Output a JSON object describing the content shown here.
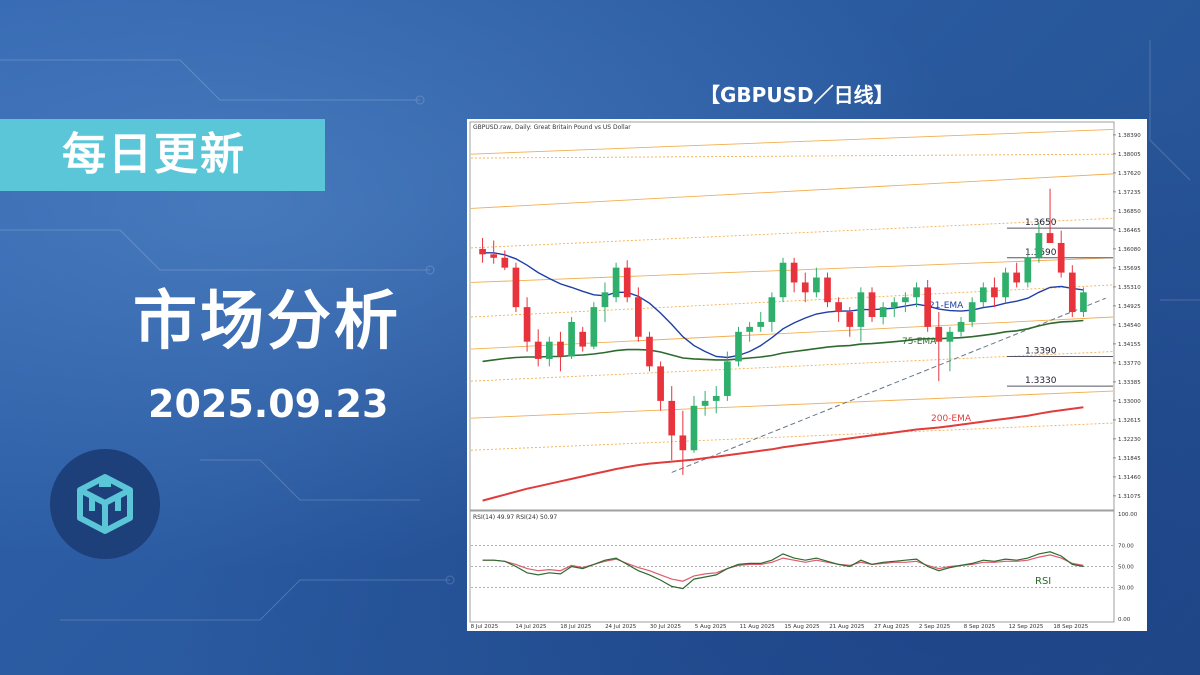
{
  "banner": {
    "label": "每日更新"
  },
  "headline": {
    "title": "市场分析",
    "date": "2025.09.23"
  },
  "chart_title": "【GBPUSD／日线】",
  "colors": {
    "banner": "#5bc6d8",
    "bg": "#2a5aa0",
    "bull": "#2eaf6b",
    "bear": "#e8323c",
    "ema21": "#1f3fa8",
    "ema75": "#2e6a2e",
    "ema200": "#e03c3c",
    "resistance": "#f0a030",
    "rsi14": "#2e6a2e",
    "rsi24": "#e05a70"
  },
  "chart_data": [
    {
      "type": "candlestick",
      "header": "GBPUSD.raw, Daily:  Great Britain Pound vs US Dollar",
      "x_labels": [
        "8 Jul 2025",
        "14 Jul 2025",
        "18 Jul 2025",
        "24 Jul 2025",
        "30 Jul 2025",
        "5 Aug 2025",
        "11 Aug 2025",
        "15 Aug 2025",
        "21 Aug 2025",
        "27 Aug 2025",
        "2 Sep 2025",
        "8 Sep 2025",
        "12 Sep 2025",
        "18 Sep 2025"
      ],
      "y_ticks": [
        "1.38390",
        "1.38005",
        "1.37620",
        "1.37235",
        "1.36850",
        "1.36465",
        "1.36080",
        "1.35695",
        "1.35310",
        "1.34925",
        "1.34540",
        "1.34155",
        "1.33770",
        "1.33385",
        "1.33000",
        "1.32615",
        "1.32230",
        "1.31845",
        "1.31460",
        "1.31075"
      ],
      "ylim": [
        1.3085,
        1.3855
      ],
      "candles": [
        {
          "o": 1.3608,
          "h": 1.363,
          "l": 1.358,
          "c": 1.3597
        },
        {
          "o": 1.3597,
          "h": 1.3625,
          "l": 1.3578,
          "c": 1.359
        },
        {
          "o": 1.359,
          "h": 1.3605,
          "l": 1.3565,
          "c": 1.357
        },
        {
          "o": 1.357,
          "h": 1.358,
          "l": 1.348,
          "c": 1.349
        },
        {
          "o": 1.349,
          "h": 1.351,
          "l": 1.34,
          "c": 1.342
        },
        {
          "o": 1.342,
          "h": 1.3445,
          "l": 1.337,
          "c": 1.3385
        },
        {
          "o": 1.3385,
          "h": 1.343,
          "l": 1.337,
          "c": 1.342
        },
        {
          "o": 1.342,
          "h": 1.344,
          "l": 1.336,
          "c": 1.339
        },
        {
          "o": 1.339,
          "h": 1.347,
          "l": 1.3385,
          "c": 1.346
        },
        {
          "o": 1.344,
          "h": 1.345,
          "l": 1.34,
          "c": 1.341
        },
        {
          "o": 1.341,
          "h": 1.35,
          "l": 1.3405,
          "c": 1.349
        },
        {
          "o": 1.349,
          "h": 1.354,
          "l": 1.346,
          "c": 1.352
        },
        {
          "o": 1.351,
          "h": 1.358,
          "l": 1.35,
          "c": 1.357
        },
        {
          "o": 1.357,
          "h": 1.3585,
          "l": 1.35,
          "c": 1.351
        },
        {
          "o": 1.351,
          "h": 1.353,
          "l": 1.342,
          "c": 1.343
        },
        {
          "o": 1.343,
          "h": 1.344,
          "l": 1.336,
          "c": 1.337
        },
        {
          "o": 1.337,
          "h": 1.338,
          "l": 1.328,
          "c": 1.33
        },
        {
          "o": 1.33,
          "h": 1.333,
          "l": 1.318,
          "c": 1.323
        },
        {
          "o": 1.323,
          "h": 1.328,
          "l": 1.315,
          "c": 1.32
        },
        {
          "o": 1.32,
          "h": 1.331,
          "l": 1.3195,
          "c": 1.329
        },
        {
          "o": 1.329,
          "h": 1.332,
          "l": 1.327,
          "c": 1.33
        },
        {
          "o": 1.33,
          "h": 1.333,
          "l": 1.3275,
          "c": 1.331
        },
        {
          "o": 1.331,
          "h": 1.34,
          "l": 1.33,
          "c": 1.338
        },
        {
          "o": 1.338,
          "h": 1.345,
          "l": 1.337,
          "c": 1.344
        },
        {
          "o": 1.344,
          "h": 1.346,
          "l": 1.342,
          "c": 1.345
        },
        {
          "o": 1.345,
          "h": 1.348,
          "l": 1.344,
          "c": 1.346
        },
        {
          "o": 1.346,
          "h": 1.352,
          "l": 1.344,
          "c": 1.351
        },
        {
          "o": 1.351,
          "h": 1.359,
          "l": 1.35,
          "c": 1.358
        },
        {
          "o": 1.358,
          "h": 1.359,
          "l": 1.352,
          "c": 1.354
        },
        {
          "o": 1.354,
          "h": 1.356,
          "l": 1.35,
          "c": 1.352
        },
        {
          "o": 1.352,
          "h": 1.357,
          "l": 1.351,
          "c": 1.355
        },
        {
          "o": 1.355,
          "h": 1.356,
          "l": 1.349,
          "c": 1.35
        },
        {
          "o": 1.35,
          "h": 1.351,
          "l": 1.346,
          "c": 1.348
        },
        {
          "o": 1.348,
          "h": 1.349,
          "l": 1.343,
          "c": 1.345
        },
        {
          "o": 1.345,
          "h": 1.353,
          "l": 1.342,
          "c": 1.352
        },
        {
          "o": 1.352,
          "h": 1.353,
          "l": 1.346,
          "c": 1.347
        },
        {
          "o": 1.347,
          "h": 1.35,
          "l": 1.3455,
          "c": 1.349
        },
        {
          "o": 1.349,
          "h": 1.351,
          "l": 1.347,
          "c": 1.35
        },
        {
          "o": 1.35,
          "h": 1.352,
          "l": 1.348,
          "c": 1.351
        },
        {
          "o": 1.351,
          "h": 1.354,
          "l": 1.349,
          "c": 1.353
        },
        {
          "o": 1.353,
          "h": 1.3545,
          "l": 1.344,
          "c": 1.345
        },
        {
          "o": 1.345,
          "h": 1.348,
          "l": 1.334,
          "c": 1.342
        },
        {
          "o": 1.342,
          "h": 1.345,
          "l": 1.336,
          "c": 1.344
        },
        {
          "o": 1.344,
          "h": 1.347,
          "l": 1.343,
          "c": 1.346
        },
        {
          "o": 1.346,
          "h": 1.351,
          "l": 1.345,
          "c": 1.35
        },
        {
          "o": 1.35,
          "h": 1.354,
          "l": 1.349,
          "c": 1.353
        },
        {
          "o": 1.353,
          "h": 1.355,
          "l": 1.349,
          "c": 1.351
        },
        {
          "o": 1.351,
          "h": 1.357,
          "l": 1.35,
          "c": 1.356
        },
        {
          "o": 1.356,
          "h": 1.358,
          "l": 1.353,
          "c": 1.354
        },
        {
          "o": 1.354,
          "h": 1.36,
          "l": 1.353,
          "c": 1.359
        },
        {
          "o": 1.359,
          "h": 1.366,
          "l": 1.358,
          "c": 1.364
        },
        {
          "o": 1.364,
          "h": 1.373,
          "l": 1.362,
          "c": 1.362
        },
        {
          "o": 1.362,
          "h": 1.3645,
          "l": 1.355,
          "c": 1.356
        },
        {
          "o": 1.356,
          "h": 1.3575,
          "l": 1.347,
          "c": 1.348
        },
        {
          "o": 1.348,
          "h": 1.353,
          "l": 1.347,
          "c": 1.352
        }
      ],
      "ema21": [
        1.36,
        1.36,
        1.3596,
        1.3588,
        1.3575,
        1.356,
        1.3548,
        1.3537,
        1.353,
        1.3522,
        1.3515,
        1.3513,
        1.352,
        1.352,
        1.3512,
        1.3498,
        1.3478,
        1.3455,
        1.343,
        1.3412,
        1.34,
        1.339,
        1.3388,
        1.3392,
        1.34,
        1.3412,
        1.3428,
        1.3446,
        1.3458,
        1.3468,
        1.3476,
        1.348,
        1.3482,
        1.3482,
        1.3485,
        1.3485,
        1.3486,
        1.3488,
        1.3492,
        1.3496,
        1.3492,
        1.3486,
        1.3483,
        1.3482,
        1.3484,
        1.3489,
        1.3492,
        1.3498,
        1.3502,
        1.3508,
        1.352,
        1.353,
        1.3532,
        1.3528,
        1.3525
      ],
      "ema75": [
        1.338,
        1.3383,
        1.3386,
        1.3388,
        1.3389,
        1.3389,
        1.339,
        1.339,
        1.3392,
        1.3393,
        1.3395,
        1.3398,
        1.3402,
        1.3404,
        1.3404,
        1.3403,
        1.3399,
        1.3393,
        1.3387,
        1.3385,
        1.3384,
        1.3383,
        1.3383,
        1.3385,
        1.3387,
        1.3389,
        1.3392,
        1.3397,
        1.34,
        1.3403,
        1.3406,
        1.3409,
        1.3411,
        1.3412,
        1.3415,
        1.3416,
        1.3418,
        1.342,
        1.3422,
        1.3425,
        1.3426,
        1.3426,
        1.3427,
        1.3428,
        1.343,
        1.3433,
        1.3436,
        1.344,
        1.3442,
        1.3446,
        1.3452,
        1.3457,
        1.346,
        1.3461,
        1.3463
      ],
      "ema200": [
        1.3098,
        1.3104,
        1.311,
        1.3116,
        1.3122,
        1.3127,
        1.3132,
        1.3137,
        1.3142,
        1.3147,
        1.3152,
        1.3157,
        1.3162,
        1.3166,
        1.317,
        1.3173,
        1.3175,
        1.3177,
        1.3179,
        1.3181,
        1.3184,
        1.3187,
        1.319,
        1.3193,
        1.3196,
        1.3199,
        1.3202,
        1.3206,
        1.3209,
        1.3212,
        1.3215,
        1.3218,
        1.3221,
        1.3224,
        1.3227,
        1.323,
        1.3233,
        1.3236,
        1.3239,
        1.3242,
        1.3244,
        1.3246,
        1.3249,
        1.3252,
        1.3255,
        1.3258,
        1.3261,
        1.3264,
        1.3267,
        1.327,
        1.3274,
        1.3278,
        1.3281,
        1.3284,
        1.3287
      ],
      "channel_lines": [
        {
          "start": 1.38,
          "end": 1.385
        },
        {
          "start": 1.3792,
          "end": 1.38
        },
        {
          "start": 1.369,
          "end": 1.376
        },
        {
          "start": 1.361,
          "end": 1.367
        },
        {
          "start": 1.354,
          "end": 1.359
        },
        {
          "start": 1.347,
          "end": 1.3535
        },
        {
          "start": 1.3405,
          "end": 1.347
        },
        {
          "start": 1.334,
          "end": 1.34
        },
        {
          "start": 1.3265,
          "end": 1.332
        },
        {
          "start": 1.32,
          "end": 1.3255
        }
      ],
      "trendline": {
        "start_index": 17,
        "start_price": 1.3155,
        "end_index": 56,
        "end_price": 1.3508
      },
      "levels": [
        {
          "label": "1.3650",
          "price": 1.365
        },
        {
          "label": "1.3590",
          "price": 1.359
        },
        {
          "label": "1.3390",
          "price": 1.339
        },
        {
          "label": "1.3330",
          "price": 1.333
        }
      ],
      "annotations": {
        "ema21": "21-EMA",
        "ema75": "75-EMA",
        "ema200": "200-EMA"
      }
    },
    {
      "type": "line",
      "header": "RSI(14) 49.97 RSI(24) 50.97",
      "label": "RSI",
      "ylim": [
        0,
        100
      ],
      "y_ticks": [
        "100.00",
        "70.00",
        "50.00",
        "30.00",
        "0.00"
      ],
      "rsi14": [
        56,
        56,
        55,
        50,
        44,
        42,
        44,
        43,
        50,
        48,
        52,
        56,
        58,
        52,
        46,
        42,
        37,
        31,
        29,
        38,
        40,
        42,
        48,
        52,
        53,
        53,
        56,
        62,
        58,
        56,
        58,
        55,
        52,
        50,
        56,
        52,
        54,
        55,
        56,
        57,
        50,
        46,
        49,
        51,
        53,
        56,
        55,
        57,
        56,
        58,
        62,
        64,
        60,
        52,
        50
      ],
      "rsi24": [
        56,
        56,
        55,
        52,
        48,
        46,
        47,
        46,
        51,
        49,
        52,
        55,
        57,
        53,
        49,
        46,
        42,
        38,
        36,
        41,
        43,
        44,
        48,
        51,
        52,
        52,
        54,
        58,
        56,
        54,
        56,
        54,
        52,
        51,
        54,
        52,
        53,
        54,
        54,
        55,
        51,
        48,
        50,
        51,
        52,
        54,
        54,
        55,
        55,
        56,
        59,
        61,
        58,
        53,
        51
      ]
    }
  ]
}
